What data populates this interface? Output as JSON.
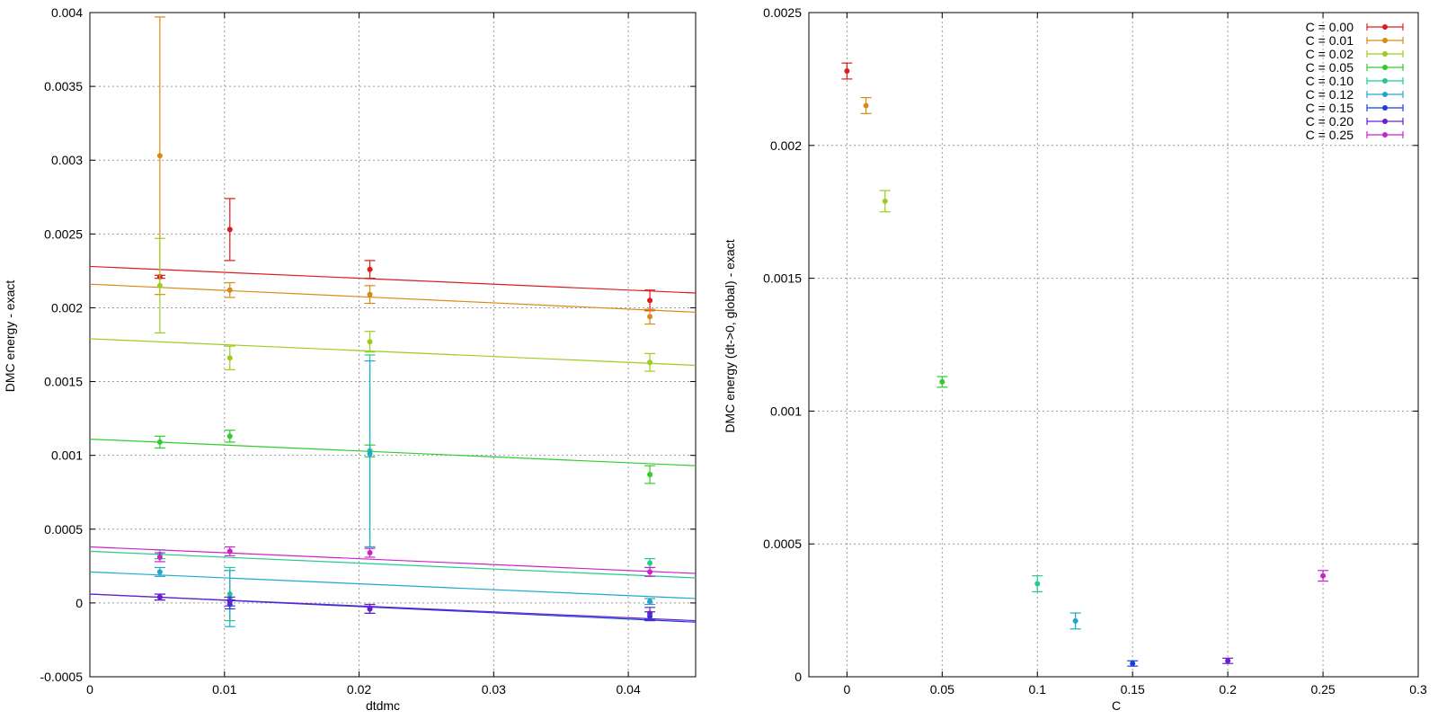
{
  "colors": {
    "C = 0.00": "#dd1c1c",
    "C = 0.01": "#d98a16",
    "C = 0.02": "#9ccc1e",
    "C = 0.05": "#2ecc2e",
    "C = 0.10": "#22cc8a",
    "C = 0.12": "#1fa8cc",
    "C = 0.15": "#1a3fdd",
    "C = 0.20": "#6a1fcc",
    "C = 0.25": "#cc22cc",
    "grid": "#999999"
  },
  "chart_data": [
    {
      "type": "scatter",
      "title": "",
      "xlabel": "dtdmc",
      "ylabel": "DMC energy - exact",
      "xlim": [
        0,
        0.045
      ],
      "ylim": [
        -0.0005,
        0.004
      ],
      "xticks": [
        "0",
        "0.01",
        "0.02",
        "0.03",
        "0.04"
      ],
      "yticks": [
        "-0.0005",
        "0",
        "0.0005",
        "0.001",
        "0.0015",
        "0.002",
        "0.0025",
        "0.003",
        "0.0035",
        "0.004"
      ],
      "grid": true,
      "x": [
        0.0052,
        0.0104,
        0.0208,
        0.0416
      ],
      "series": [
        {
          "name": "C = 0.00",
          "y": [
            0.00221,
            0.00253,
            0.00226,
            0.00205
          ],
          "err": [
            1e-05,
            0.00021,
            6e-05,
            7e-05
          ],
          "fit": [
            0.00228,
            0.0021
          ]
        },
        {
          "name": "C = 0.01",
          "y": [
            0.00303,
            0.00212,
            0.00209,
            0.00194
          ],
          "err": [
            0.00094,
            5e-05,
            6e-05,
            5e-05
          ],
          "fit": [
            0.00216,
            0.00197
          ]
        },
        {
          "name": "C = 0.02",
          "y": [
            0.00215,
            0.00166,
            0.00177,
            0.00163
          ],
          "err": [
            0.00032,
            8e-05,
            7e-05,
            6e-05
          ],
          "fit": [
            0.00179,
            0.00161
          ]
        },
        {
          "name": "C = 0.05",
          "y": [
            0.00109,
            0.00113,
            0.00103,
            0.00087
          ],
          "err": [
            4e-05,
            4e-05,
            4e-05,
            6e-05
          ],
          "fit": [
            0.00111,
            0.00093
          ]
        },
        {
          "name": "C = 0.10",
          "y": [
            0.00033,
            6e-05,
            0.00103,
            0.00027
          ],
          "err": [
            3e-05,
            0.00018,
            0.00065,
            3e-05
          ],
          "fit": [
            0.00035,
            0.00017
          ]
        },
        {
          "name": "C = 0.12",
          "y": [
            0.00021,
            3e-05,
            0.00101,
            1e-05
          ],
          "err": [
            3e-05,
            0.00019,
            0.00063,
            2e-05
          ],
          "fit": [
            0.00021,
            3e-05
          ]
        },
        {
          "name": "C = 0.15",
          "y": [
            4e-05,
            -1e-05,
            -4e-05,
            -9e-05
          ],
          "err": [
            2e-05,
            3e-05,
            3e-05,
            3e-05
          ],
          "fit": [
            6e-05,
            -0.00013
          ]
        },
        {
          "name": "C = 0.20",
          "y": [
            4e-05,
            1e-05,
            -4e-05,
            -7e-05
          ],
          "err": [
            2e-05,
            3e-05,
            3e-05,
            4e-05
          ],
          "fit": [
            6e-05,
            -0.00012
          ]
        },
        {
          "name": "C = 0.25",
          "y": [
            0.00031,
            0.00035,
            0.00034,
            0.00021
          ],
          "err": [
            3e-05,
            3e-05,
            3e-05,
            3e-05
          ],
          "fit": [
            0.00038,
            0.0002
          ]
        }
      ]
    },
    {
      "type": "scatter",
      "title": "",
      "xlabel": "C",
      "ylabel": "DMC energy (dt->0, global) - exact",
      "xlim": [
        -0.02,
        0.3
      ],
      "ylim": [
        0,
        0.0025
      ],
      "xticks": [
        "0",
        "0.05",
        "0.1",
        "0.15",
        "0.2",
        "0.25",
        "0.3"
      ],
      "yticks": [
        "0",
        "0.0005",
        "0.001",
        "0.0015",
        "0.002",
        "0.0025"
      ],
      "grid": true,
      "legend_position": "top-right",
      "legend": [
        "C = 0.00",
        "C = 0.01",
        "C = 0.02",
        "C = 0.05",
        "C = 0.10",
        "C = 0.12",
        "C = 0.15",
        "C = 0.20",
        "C = 0.25"
      ],
      "points": [
        {
          "name": "C = 0.00",
          "x": 0.0,
          "y": 0.00228,
          "err": 3e-05
        },
        {
          "name": "C = 0.01",
          "x": 0.01,
          "y": 0.00215,
          "err": 3e-05
        },
        {
          "name": "C = 0.02",
          "x": 0.02,
          "y": 0.00179,
          "err": 4e-05
        },
        {
          "name": "C = 0.05",
          "x": 0.05,
          "y": 0.00111,
          "err": 2e-05
        },
        {
          "name": "C = 0.10",
          "x": 0.1,
          "y": 0.00035,
          "err": 3e-05
        },
        {
          "name": "C = 0.12",
          "x": 0.12,
          "y": 0.00021,
          "err": 3e-05
        },
        {
          "name": "C = 0.15",
          "x": 0.15,
          "y": 5e-05,
          "err": 1e-05
        },
        {
          "name": "C = 0.20",
          "x": 0.2,
          "y": 6e-05,
          "err": 1e-05
        },
        {
          "name": "C = 0.25",
          "x": 0.25,
          "y": 0.00038,
          "err": 2e-05
        }
      ]
    }
  ]
}
